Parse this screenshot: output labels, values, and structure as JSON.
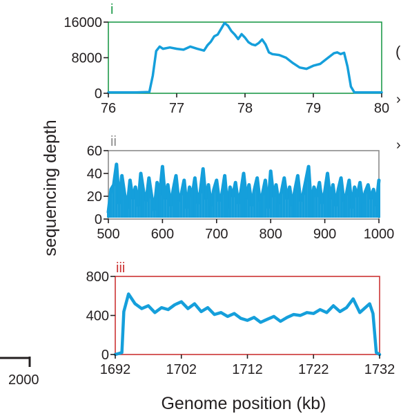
{
  "figure": {
    "ylabel": "sequencing depth",
    "xlabel": "Genome position (kb)",
    "clipped_left_label": "2000",
    "clipped_right_marks": [
      "(",
      "›",
      "›"
    ],
    "trace_color": "#159fdb",
    "axis_color": "#231f20"
  },
  "chart_data": [
    {
      "type": "line",
      "panel_label": "i",
      "panel_color": "#1e9a4a",
      "xlim": [
        76,
        80
      ],
      "ylim": [
        0,
        16000
      ],
      "xticks": [
        "76",
        "77",
        "78",
        "79",
        "80"
      ],
      "yticks": [
        "0",
        "8000",
        "16000"
      ],
      "series": [
        {
          "x": [
            76.0,
            76.2,
            76.4,
            76.6,
            76.65,
            76.7,
            76.75,
            76.8,
            76.9,
            77.0,
            77.1,
            77.2,
            77.3,
            77.4,
            77.45,
            77.5,
            77.55,
            77.6,
            77.65,
            77.7,
            77.75,
            77.8,
            77.85,
            77.9,
            77.95,
            78.0,
            78.05,
            78.1,
            78.15,
            78.2,
            78.25,
            78.3,
            78.35,
            78.4,
            78.5,
            78.6,
            78.7,
            78.8,
            78.9,
            79.0,
            79.1,
            79.2,
            79.3,
            79.35,
            79.4,
            79.45,
            79.5,
            79.55,
            79.6,
            79.7,
            79.8,
            80.0
          ],
          "y": [
            200,
            200,
            200,
            300,
            4000,
            9500,
            10500,
            10000,
            10300,
            10000,
            9800,
            10500,
            10000,
            9600,
            10800,
            11600,
            12800,
            13200,
            14500,
            15800,
            15200,
            14000,
            13200,
            12200,
            13300,
            12500,
            11500,
            11000,
            10800,
            11300,
            12100,
            11000,
            9200,
            8800,
            8600,
            8000,
            6800,
            5800,
            5500,
            6200,
            6600,
            7800,
            9000,
            9200,
            8800,
            9100,
            6000,
            1500,
            200,
            200,
            200,
            200
          ]
        }
      ]
    },
    {
      "type": "line",
      "panel_label": "ii",
      "panel_color": "#8a8a8a",
      "xlim": [
        500,
        1000
      ],
      "ylim": [
        0,
        60
      ],
      "xticks": [
        "500",
        "600",
        "700",
        "800",
        "900",
        "1000"
      ],
      "yticks": [
        "0",
        "20",
        "40",
        "60"
      ],
      "series": [
        {
          "x": [
            500,
            505,
            510,
            515,
            520,
            525,
            530,
            535,
            540,
            545,
            550,
            555,
            560,
            565,
            570,
            575,
            580,
            585,
            590,
            595,
            600,
            605,
            610,
            615,
            620,
            625,
            630,
            635,
            640,
            645,
            650,
            655,
            660,
            665,
            670,
            675,
            680,
            685,
            690,
            695,
            700,
            705,
            710,
            715,
            720,
            725,
            730,
            735,
            740,
            745,
            750,
            755,
            760,
            765,
            770,
            775,
            780,
            785,
            790,
            795,
            800,
            805,
            810,
            815,
            820,
            825,
            830,
            835,
            840,
            845,
            850,
            855,
            860,
            865,
            870,
            875,
            880,
            885,
            890,
            895,
            900,
            905,
            910,
            915,
            920,
            925,
            930,
            935,
            940,
            945,
            950,
            955,
            960,
            965,
            970,
            975,
            980,
            985,
            990,
            995,
            1000
          ],
          "y": [
            6,
            26,
            30,
            48,
            14,
            38,
            22,
            10,
            34,
            18,
            28,
            12,
            40,
            24,
            16,
            36,
            20,
            8,
            32,
            22,
            46,
            18,
            30,
            12,
            26,
            38,
            16,
            22,
            34,
            10,
            28,
            20,
            36,
            14,
            24,
            44,
            18,
            30,
            12,
            26,
            34,
            16,
            22,
            38,
            10,
            28,
            20,
            32,
            14,
            24,
            40,
            18,
            30,
            12,
            26,
            36,
            16,
            22,
            34,
            10,
            42,
            20,
            30,
            14,
            24,
            36,
            18,
            28,
            12,
            26,
            38,
            16,
            22,
            34,
            46,
            10,
            28,
            20,
            32,
            14,
            24,
            40,
            18,
            30,
            12,
            26,
            36,
            16,
            22,
            34,
            10,
            28,
            20,
            32,
            14,
            24,
            30,
            18,
            26,
            12,
            34
          ]
        }
      ]
    },
    {
      "type": "line",
      "panel_label": "iii",
      "panel_color": "#cc3333",
      "xlim": [
        1692,
        1732
      ],
      "ylim": [
        0,
        800
      ],
      "xticks": [
        "1692",
        "1702",
        "1712",
        "1722",
        "1732"
      ],
      "yticks": [
        "0",
        "400",
        "800"
      ],
      "series": [
        {
          "x": [
            1692,
            1692.5,
            1693.0,
            1693.3,
            1694,
            1695,
            1696,
            1697,
            1698,
            1699,
            1700,
            1701,
            1702,
            1703,
            1704,
            1705,
            1706,
            1707,
            1708,
            1709,
            1710,
            1711,
            1712,
            1713,
            1714,
            1715,
            1716,
            1717,
            1718,
            1719,
            1720,
            1721,
            1722,
            1723,
            1724,
            1725,
            1726,
            1727,
            1728,
            1729,
            1730,
            1730.5,
            1731,
            1731.5,
            1732
          ],
          "y": [
            0,
            10,
            20,
            440,
            620,
            520,
            470,
            500,
            430,
            480,
            460,
            510,
            540,
            470,
            520,
            440,
            480,
            410,
            430,
            390,
            420,
            370,
            350,
            380,
            330,
            360,
            390,
            340,
            380,
            410,
            400,
            430,
            420,
            460,
            430,
            500,
            440,
            480,
            570,
            430,
            490,
            520,
            420,
            20,
            0
          ]
        }
      ]
    }
  ]
}
